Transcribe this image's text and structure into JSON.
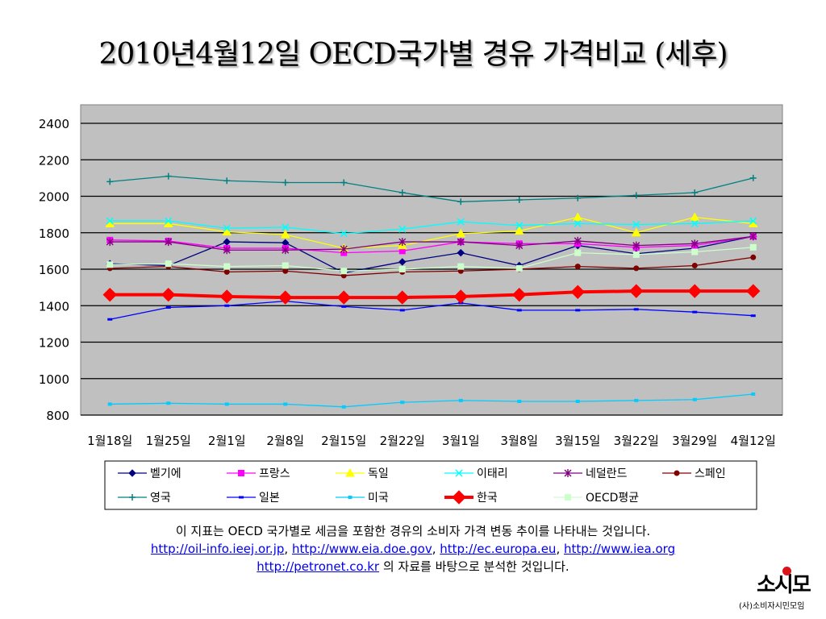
{
  "title": "2010년4월12일 OECD국가별 경유 가격비교 (세후)",
  "chart_data": {
    "type": "line",
    "categories": [
      "1월18일",
      "1월25일",
      "2월1일",
      "2월8일",
      "2월15일",
      "2월22일",
      "3월1일",
      "3월8일",
      "3월15일",
      "3월22일",
      "3월29일",
      "4월12일"
    ],
    "ylim": [
      800,
      2400
    ],
    "yticks": [
      800,
      1000,
      1200,
      1400,
      1600,
      1800,
      2000,
      2200,
      2400
    ],
    "grid": true,
    "plot_background": "#c0c0c0",
    "legend_position": "bottom",
    "series": [
      {
        "name": "벨기에",
        "color": "#000080",
        "marker": "diamond",
        "values": [
          1630,
          1620,
          1750,
          1745,
          1580,
          1640,
          1690,
          1620,
          1730,
          1685,
          1715,
          1780
        ]
      },
      {
        "name": "프랑스",
        "color": "#ff00ff",
        "marker": "square",
        "values": [
          1760,
          1755,
          1715,
          1715,
          1690,
          1700,
          1750,
          1740,
          1740,
          1720,
          1730,
          1780
        ]
      },
      {
        "name": "독일",
        "color": "#ffff00",
        "marker": "triangle",
        "values": [
          1850,
          1850,
          1805,
          1790,
          1715,
          1730,
          1795,
          1810,
          1885,
          1800,
          1885,
          1850
        ]
      },
      {
        "name": "이태리",
        "color": "#00ffff",
        "marker": "x",
        "values": [
          1865,
          1865,
          1825,
          1830,
          1795,
          1820,
          1860,
          1840,
          1850,
          1845,
          1850,
          1865
        ]
      },
      {
        "name": "네덜란드",
        "color": "#800080",
        "marker": "star",
        "values": [
          1750,
          1750,
          1705,
          1705,
          1710,
          1750,
          1750,
          1730,
          1755,
          1730,
          1740,
          1780
        ]
      },
      {
        "name": "스페인",
        "color": "#800000",
        "marker": "circle",
        "values": [
          1605,
          1615,
          1585,
          1590,
          1565,
          1585,
          1590,
          1600,
          1615,
          1605,
          1620,
          1665
        ]
      },
      {
        "name": "영국",
        "color": "#008080",
        "marker": "plus",
        "values": [
          2080,
          2110,
          2085,
          2075,
          2075,
          2020,
          1970,
          1980,
          1990,
          2005,
          2020,
          2100
        ]
      },
      {
        "name": "일본",
        "color": "#0000ff",
        "marker": "dash",
        "values": [
          1325,
          1390,
          1400,
          1425,
          1395,
          1375,
          1415,
          1375,
          1375,
          1380,
          1365,
          1345
        ]
      },
      {
        "name": "미국",
        "color": "#00ccff",
        "marker": "square-small",
        "values": [
          860,
          865,
          860,
          860,
          845,
          870,
          880,
          875,
          875,
          880,
          885,
          915
        ]
      },
      {
        "name": "한국",
        "color": "#ff0000",
        "marker": "diamond-large",
        "values": [
          1460,
          1460,
          1450,
          1445,
          1445,
          1445,
          1450,
          1460,
          1475,
          1480,
          1480,
          1480
        ]
      },
      {
        "name": "OECD평균",
        "color": "#ccffcc",
        "marker": "square",
        "values": [
          1625,
          1630,
          1615,
          1620,
          1590,
          1600,
          1615,
          1605,
          1690,
          1680,
          1695,
          1720
        ]
      }
    ]
  },
  "note": {
    "line1": "이 지표는 OECD 국가별로 세금을 포함한 경유의 소비자 가격 변동 추이를 나타내는 것입니다.",
    "links": [
      "http://oil-info.ieej.or.jp",
      "http://www.eia.doe.gov",
      "http://ec.europa.eu",
      "http://www.iea.org",
      "http://petronet.co.kr"
    ],
    "separator": ", ",
    "tail": " 의 자료를 바탕으로 분석한 것입니다."
  },
  "logo": {
    "mark": "소시모",
    "name": "(사)소비자시민모임",
    "accent_color": "#d9141b"
  }
}
